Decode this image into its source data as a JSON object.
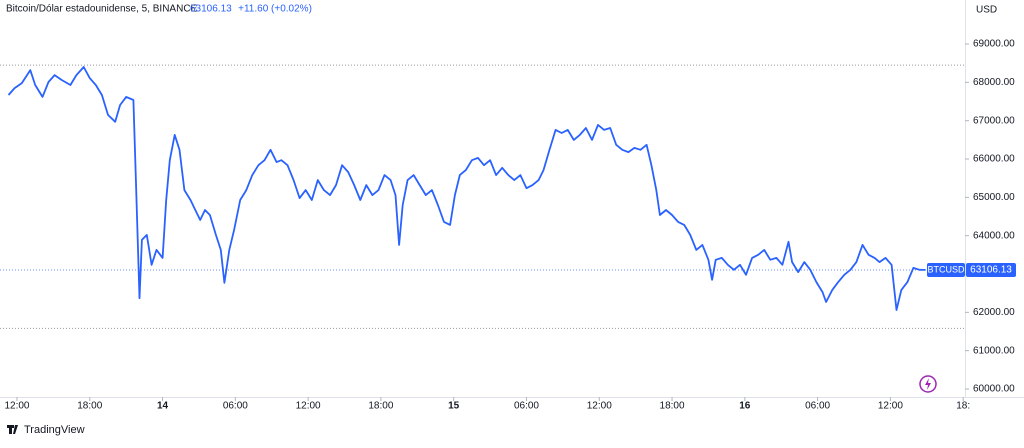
{
  "header": {
    "symbol": "Bitcoin/Dólar estadounidense, 5, BINANCE",
    "change": "+11.60 (+0.02%)"
  },
  "chart_data": {
    "type": "line",
    "currency": "USD",
    "x": [
      11.3,
      11.8,
      12.4,
      13.1,
      13.5,
      14.1,
      14.6,
      15.1,
      15.7,
      16.4,
      16.9,
      17.5,
      18.0,
      18.5,
      19.0,
      19.5,
      20.1,
      20.5,
      21.0,
      21.6,
      21.8,
      22.1,
      22.3,
      22.7,
      23.1,
      23.5,
      24.0,
      24.3,
      24.6,
      25.0,
      25.4,
      25.8,
      26.3,
      26.7,
      27.1,
      27.5,
      27.9,
      28.4,
      28.8,
      29.1,
      29.5,
      29.9,
      30.4,
      30.9,
      31.4,
      31.9,
      32.4,
      32.9,
      33.4,
      33.8,
      34.3,
      34.8,
      35.3,
      35.8,
      36.3,
      36.8,
      37.3,
      37.8,
      38.3,
      38.8,
      39.3,
      39.8,
      40.3,
      40.8,
      41.3,
      41.8,
      42.3,
      42.8,
      43.2,
      43.5,
      43.8,
      44.2,
      44.7,
      45.2,
      45.7,
      46.2,
      46.7,
      47.2,
      47.7,
      48.1,
      48.5,
      49.0,
      49.5,
      50.0,
      50.5,
      51.0,
      51.5,
      52.0,
      52.5,
      53.0,
      53.5,
      54.0,
      54.5,
      55.0,
      55.4,
      55.9,
      56.4,
      56.9,
      57.4,
      57.9,
      58.4,
      58.9,
      59.4,
      59.9,
      60.4,
      60.9,
      61.4,
      61.9,
      62.4,
      62.9,
      63.4,
      63.9,
      64.3,
      64.7,
      65.0,
      65.5,
      66.0,
      66.5,
      67.0,
      67.5,
      68.0,
      68.5,
      69.0,
      69.3,
      69.6,
      70.1,
      70.6,
      71.1,
      71.6,
      72.1,
      72.6,
      73.1,
      73.6,
      74.1,
      74.6,
      75.1,
      75.6,
      75.9,
      76.4,
      76.9,
      77.4,
      77.9,
      78.4,
      78.7,
      79.2,
      79.7,
      80.2,
      80.7,
      81.2,
      81.7,
      82.2,
      82.7,
      83.1,
      83.6,
      84.1,
      84.5,
      84.9,
      85.4,
      85.9,
      86.4,
      86.9
    ],
    "series": [
      {
        "name": "BTCUSD",
        "color": "#2962ff",
        "values": [
          67670,
          67850,
          67980,
          68320,
          67930,
          67620,
          68010,
          68190,
          68060,
          67930,
          68190,
          68400,
          68110,
          67930,
          67670,
          67150,
          66970,
          67410,
          67620,
          67540,
          65450,
          62370,
          63890,
          64020,
          63240,
          63630,
          63420,
          64930,
          65970,
          66630,
          66240,
          65190,
          64930,
          64670,
          64410,
          64670,
          64540,
          64020,
          63630,
          62770,
          63630,
          64150,
          64930,
          65190,
          65580,
          65840,
          65970,
          66240,
          65920,
          65970,
          65840,
          65450,
          64980,
          65190,
          64930,
          65450,
          65190,
          65060,
          65320,
          65840,
          65660,
          65320,
          64930,
          65320,
          65060,
          65190,
          65580,
          65450,
          65060,
          63760,
          64800,
          65450,
          65580,
          65320,
          65060,
          65190,
          64800,
          64360,
          64280,
          65060,
          65580,
          65710,
          65970,
          66030,
          65840,
          65970,
          65580,
          65770,
          65580,
          65450,
          65580,
          65240,
          65320,
          65450,
          65710,
          66240,
          66760,
          66680,
          66760,
          66500,
          66630,
          66810,
          66500,
          66890,
          66760,
          66810,
          66370,
          66240,
          66180,
          66290,
          66240,
          66370,
          65840,
          65190,
          64540,
          64670,
          64540,
          64360,
          64280,
          64020,
          63630,
          63760,
          63370,
          62850,
          63370,
          63420,
          63240,
          63110,
          63240,
          62980,
          63420,
          63500,
          63630,
          63370,
          63420,
          63240,
          63840,
          63310,
          63050,
          63310,
          63110,
          62790,
          62530,
          62270,
          62580,
          62790,
          62980,
          63110,
          63310,
          63760,
          63500,
          63420,
          63310,
          63420,
          63240,
          62060,
          62580,
          62790,
          63160,
          63110,
          63106.13
        ]
      }
    ],
    "last_price": {
      "value": 63106.13,
      "label": "63106.13"
    },
    "reference_lines": [
      68450,
      61580
    ],
    "xlim": [
      10.6,
      90.15
    ],
    "ylim": [
      59791,
      70149
    ],
    "xticks": [
      {
        "value": 12,
        "label": "12:00"
      },
      {
        "value": 18,
        "label": "18:00"
      },
      {
        "value": 24,
        "label": "14"
      },
      {
        "value": 30,
        "label": "06:00"
      },
      {
        "value": 36,
        "label": "12:00"
      },
      {
        "value": 42,
        "label": "18:00"
      },
      {
        "value": 48,
        "label": "15"
      },
      {
        "value": 54,
        "label": "06:00"
      },
      {
        "value": 60,
        "label": "12:00"
      },
      {
        "value": 66,
        "label": "18:00"
      },
      {
        "value": 72,
        "label": "16"
      },
      {
        "value": 78,
        "label": "06:00"
      },
      {
        "value": 84,
        "label": "12:00"
      },
      {
        "value": 90,
        "label": "18:"
      }
    ],
    "yticks": [
      {
        "value": 60000,
        "label": "60000.00"
      },
      {
        "value": 61000,
        "label": "61000.00"
      },
      {
        "value": 62000,
        "label": "62000.00"
      },
      {
        "value": 63000,
        "label": "63000.00"
      },
      {
        "value": 64000,
        "label": "64000.00"
      },
      {
        "value": 65000,
        "label": "65000.00"
      },
      {
        "value": 66000,
        "label": "66000.00"
      },
      {
        "value": 67000,
        "label": "67000.00"
      },
      {
        "value": 68000,
        "label": "68000.00"
      },
      {
        "value": 69000,
        "label": "69000.00"
      }
    ]
  },
  "footer": {
    "brand": "TradingView"
  }
}
